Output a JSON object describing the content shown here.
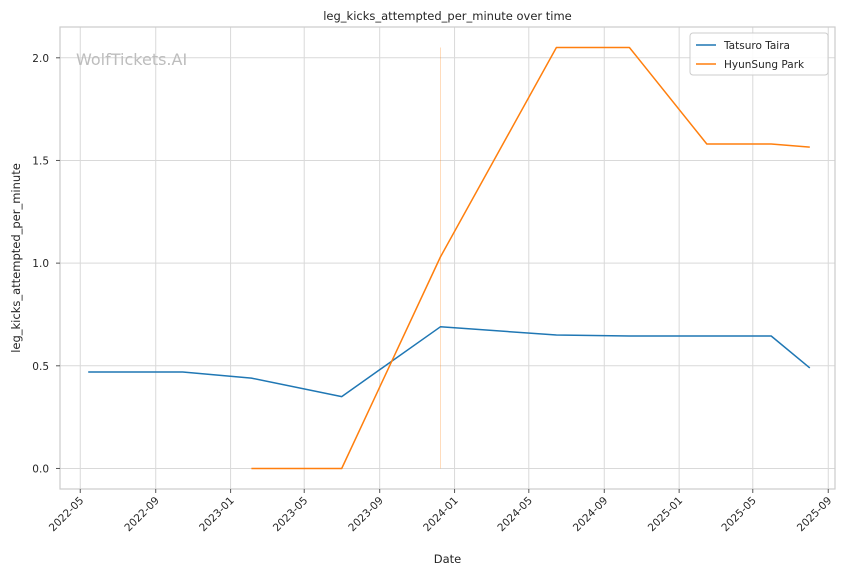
{
  "watermark": "WolfTickets.AI",
  "chart_data": {
    "type": "line",
    "title": "leg_kicks_attempted_per_minute over time",
    "xlabel": "Date",
    "ylabel": "leg_kicks_attempted_per_minute",
    "x_ticks": [
      "2022-05",
      "2022-09",
      "2023-01",
      "2023-05",
      "2023-09",
      "2024-01",
      "2024-05",
      "2024-09",
      "2025-01",
      "2025-05",
      "2025-09"
    ],
    "y_ticks": [
      "0.0",
      "0.5",
      "1.0",
      "1.5",
      "2.0"
    ],
    "xlim": [
      "2022-03-29",
      "2025-09-12"
    ],
    "ylim": [
      -0.1,
      2.15
    ],
    "grid": true,
    "legend_position": "top-right",
    "series": [
      {
        "name": "Tatsuro Taira",
        "color": "#1f77b4",
        "points": [
          {
            "x": "2022-05-14",
            "y": 0.47
          },
          {
            "x": "2022-10-15",
            "y": 0.47
          },
          {
            "x": "2023-02-04",
            "y": 0.44
          },
          {
            "x": "2023-07-01",
            "y": 0.35
          },
          {
            "x": "2023-12-09",
            "y": 0.69
          },
          {
            "x": "2024-06-15",
            "y": 0.65
          },
          {
            "x": "2024-10-12",
            "y": 0.645
          },
          {
            "x": "2025-05-31",
            "y": 0.645
          },
          {
            "x": "2025-08-02",
            "y": 0.49
          }
        ]
      },
      {
        "name": "HyunSung Park",
        "color": "#ff7f0e",
        "points": [
          {
            "x": "2023-02-04",
            "y": 0.0
          },
          {
            "x": "2023-07-01",
            "y": 0.0
          },
          {
            "x": "2023-12-09",
            "y": 1.03
          },
          {
            "x": "2024-06-15",
            "y": 2.05
          },
          {
            "x": "2024-10-12",
            "y": 2.05
          },
          {
            "x": "2025-02-15",
            "y": 1.58
          },
          {
            "x": "2025-05-31",
            "y": 1.58
          },
          {
            "x": "2025-08-02",
            "y": 1.565
          }
        ]
      }
    ],
    "annotations": [
      {
        "type": "vline",
        "x": "2023-12-09",
        "y_range": [
          0.0,
          2.05
        ],
        "color": "#ff7f0e"
      }
    ]
  }
}
